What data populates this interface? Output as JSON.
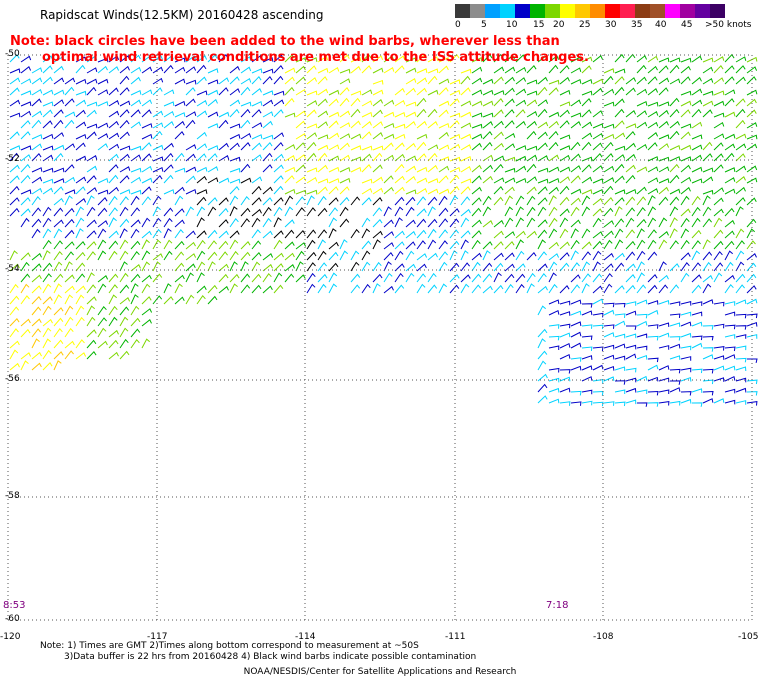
{
  "title": "Rapidscat Winds(12.5KM) 20160428 ascending",
  "note": {
    "line1": "Note: black circles have been added to the wind barbs, wherever less than",
    "line2": "optimal wind retrieval conditions are met due to the ISS attitude changes."
  },
  "legend": {
    "colors": [
      "#3a3a3a",
      "#8c8c8c",
      "#00a0ff",
      "#00d2ff",
      "#0000c8",
      "#00b400",
      "#7cd700",
      "#ffff00",
      "#ffc800",
      "#ff8c00",
      "#ff0000",
      "#ff1e50",
      "#8c3c14",
      "#a05028",
      "#ff00ff",
      "#a000a0",
      "#6400a0",
      "#3c0064"
    ],
    "labels": [
      "0",
      "5",
      "10",
      "15",
      "20",
      "25",
      "30",
      "35",
      "40",
      "45",
      ">50 knots"
    ],
    "units": "knots"
  },
  "axes": {
    "lat_labels": [
      "-50",
      "-52",
      "-54",
      "-56",
      "-58",
      "-60"
    ],
    "lon_labels": [
      "-120",
      "-117",
      "-114",
      "-111",
      "-108",
      "-105"
    ],
    "lat_range": [
      -60,
      -50
    ],
    "lon_range": [
      -120,
      -105
    ]
  },
  "times": {
    "left": "8:53",
    "right": "7:18"
  },
  "footnote": {
    "line1": "Note: 1) Times are GMT 2)Times along bottom correspond to measurement at ~50S",
    "line2": "3)Data buffer is 22 hrs from 20160428 4) Black wind barbs indicate possible contamination"
  },
  "credit": "NOAA/NESDIS/Center for Satellite Applications and Research"
}
